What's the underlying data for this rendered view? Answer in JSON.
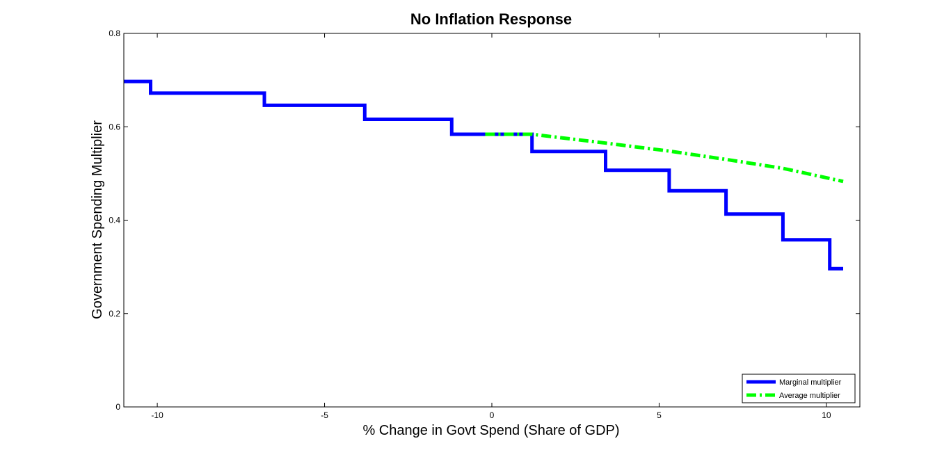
{
  "chart_data": {
    "type": "line",
    "title": "No Inflation Response",
    "xlabel": "% Change in Govt Spend (Share of GDP)",
    "ylabel": "Government Spending Multiplier",
    "xlim": [
      -11,
      11
    ],
    "ylim": [
      0,
      0.8
    ],
    "xticks": [
      -10,
      -5,
      0,
      5,
      10
    ],
    "xtick_labels": [
      "-10",
      "-5",
      "0",
      "5",
      "10"
    ],
    "yticks": [
      0,
      0.2,
      0.4,
      0.6,
      0.8
    ],
    "ytick_labels": [
      "0",
      "0.2",
      "0.4",
      "0.6",
      "0.8"
    ],
    "grid": false,
    "legend_position": "bottom-right",
    "series": [
      {
        "name": "Marginal multiplier",
        "color": "#0000ff",
        "style": "solid",
        "x": [
          -11,
          -10.2,
          -10.2,
          -6.8,
          -6.8,
          -3.8,
          -3.8,
          -1.2,
          -1.2,
          1.2,
          1.2,
          3.4,
          3.4,
          5.3,
          5.3,
          7.0,
          7.0,
          8.7,
          8.7,
          10.1,
          10.1,
          10.5
        ],
        "y": [
          0.697,
          0.697,
          0.672,
          0.672,
          0.646,
          0.646,
          0.616,
          0.616,
          0.584,
          0.584,
          0.547,
          0.547,
          0.507,
          0.507,
          0.463,
          0.463,
          0.413,
          0.413,
          0.358,
          0.358,
          0.296,
          0.296
        ]
      },
      {
        "name": "Average multiplier",
        "color": "#00ff00",
        "style": "dashdot",
        "x": [
          -0.2,
          1.2,
          3.4,
          5.3,
          7.0,
          8.7,
          10.5
        ],
        "y": [
          0.584,
          0.584,
          0.565,
          0.548,
          0.53,
          0.511,
          0.483
        ]
      }
    ]
  }
}
